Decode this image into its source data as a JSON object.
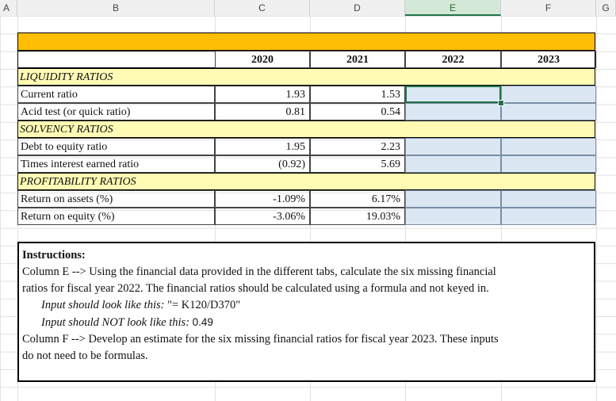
{
  "columns": [
    "A",
    "B",
    "C",
    "D",
    "E",
    "F",
    "G"
  ],
  "header": {
    "years": [
      "2020",
      "2021",
      "2022",
      "2023"
    ]
  },
  "sections": [
    {
      "title": "LIQUIDITY RATIOS",
      "rows": [
        {
          "label": "Current ratio",
          "v2020": "1.93",
          "v2021": "1.53"
        },
        {
          "label": "Acid test (or quick ratio)",
          "v2020": "0.81",
          "v2021": "0.54"
        }
      ]
    },
    {
      "title": "SOLVENCY RATIOS",
      "rows": [
        {
          "label": "Debt to equity ratio",
          "v2020": "1.95",
          "v2021": "2.23"
        },
        {
          "label": "Times interest earned ratio",
          "v2020": "(0.92)",
          "v2021": "5.69"
        }
      ]
    },
    {
      "title": "PROFITABILITY RATIOS",
      "rows": [
        {
          "label": "Return on assets (%)",
          "v2020": "-1.09%",
          "v2021": "6.17%"
        },
        {
          "label": "Return on equity (%)",
          "v2020": "-3.06%",
          "v2021": "19.03%"
        }
      ]
    }
  ],
  "instructions": {
    "heading": "Instructions:",
    "line1": "Column E --> Using the financial data provided in the different tabs, calculate the six missing financial",
    "line2": "ratios for fiscal year 2022. The financial ratios should be calculated using a formula and not keyed in.",
    "line3_prefix": "Input should look like this: ",
    "line3_value": "\"= K120/D370\"",
    "line4_prefix": "Input should NOT look like this: ",
    "line4_value": "0.49",
    "line5": "Column F --> Develop an estimate for the six missing financial ratios for fiscal year 2023. These inputs",
    "line6": "do not need to be formulas."
  },
  "colors": {
    "accent": "#ffbd05",
    "section_band": "#fffbb5",
    "input_cell": "#dbe7f3",
    "selection": "#217346"
  }
}
